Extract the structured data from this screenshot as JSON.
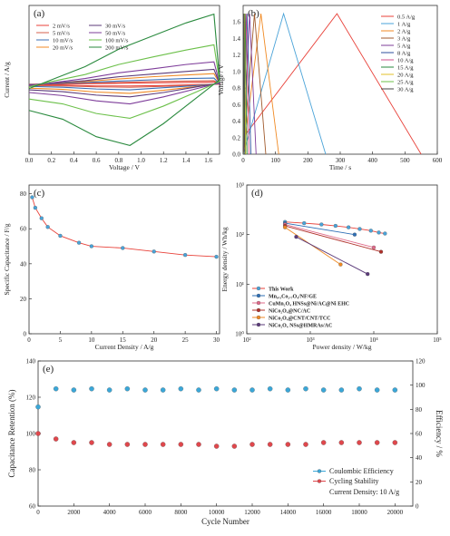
{
  "chart_data": [
    {
      "type": "line",
      "label": "(a)",
      "xlabel": "Voltage / V",
      "ylabel": "Current / A/g",
      "xlim": [
        0,
        1.7
      ],
      "ylim": [
        -16,
        18
      ],
      "xticks": [
        {
          "value": 0,
          "label": "0.0"
        },
        {
          "value": 0.2,
          "label": "0.2"
        },
        {
          "value": 0.4,
          "label": "0.4"
        },
        {
          "value": 0.6,
          "label": "0.6"
        },
        {
          "value": 0.8,
          "label": "0.8"
        },
        {
          "value": 1,
          "label": "1.0"
        },
        {
          "value": 1.2,
          "label": "1.2"
        },
        {
          "value": 1.4,
          "label": "1.4"
        },
        {
          "value": 1.6,
          "label": "1.6"
        }
      ],
      "legend": "upper left",
      "legend_columns": 2,
      "series": [
        {
          "name": "2 mV/s",
          "color": "#e8423a",
          "x": [
            0,
            0.2,
            0.5,
            0.8,
            1.1,
            1.4,
            1.65,
            1.7,
            1.5,
            1.2,
            0.9,
            0.6,
            0.3,
            0
          ],
          "values": [
            0,
            0,
            0.1,
            0.2,
            0.3,
            0.4,
            0.5,
            0,
            -0.1,
            -0.3,
            -0.4,
            -0.4,
            -0.2,
            -0.2
          ]
        },
        {
          "name": "5 mV/s",
          "color": "#d6604d",
          "x": [
            0,
            0.2,
            0.5,
            0.8,
            1.1,
            1.4,
            1.65,
            1.7,
            1.5,
            1.2,
            0.9,
            0.6,
            0.3,
            0
          ],
          "values": [
            -0.1,
            0.1,
            0.2,
            0.4,
            0.6,
            0.7,
            0.8,
            0.1,
            -0.2,
            -0.5,
            -0.7,
            -0.6,
            -0.4,
            -0.3
          ]
        },
        {
          "name": "10 mV/s",
          "color": "#3b6fb6",
          "x": [
            0,
            0.2,
            0.5,
            0.8,
            1.1,
            1.4,
            1.65,
            1.7,
            1.5,
            1.2,
            0.9,
            0.6,
            0.3,
            0
          ],
          "values": [
            -0.1,
            0.1,
            0.4,
            0.7,
            1,
            1.3,
            1.4,
            0.1,
            -0.3,
            -0.8,
            -1.3,
            -1.1,
            -0.7,
            -0.5
          ]
        },
        {
          "name": "20 mV/s",
          "color": "#f08a24",
          "x": [
            0,
            0.2,
            0.5,
            0.8,
            1.1,
            1.4,
            1.65,
            1.7,
            1.5,
            1.2,
            0.9,
            0.6,
            0.3,
            0
          ],
          "values": [
            -0.2,
            0.2,
            0.6,
            1.2,
            1.7,
            2.1,
            2.4,
            0.2,
            -0.5,
            -1.4,
            -2.1,
            -1.8,
            -1.2,
            -0.9
          ]
        },
        {
          "name": "30 mV/s",
          "color": "#5b3a7a",
          "x": [
            0,
            0.2,
            0.5,
            0.8,
            1.1,
            1.4,
            1.65,
            1.7,
            1.5,
            1.2,
            0.9,
            0.6,
            0.3,
            0
          ],
          "values": [
            -0.2,
            0.2,
            0.8,
            1.7,
            2.3,
            2.9,
            3.4,
            0.2,
            -0.6,
            -1.9,
            -2.9,
            -2.5,
            -1.7,
            -1.3
          ]
        },
        {
          "name": "50 mV/s",
          "color": "#7e3d9a",
          "x": [
            0,
            0.2,
            0.5,
            0.8,
            1.1,
            1.4,
            1.65,
            1.7,
            1.5,
            1.2,
            0.9,
            0.6,
            0.3,
            0
          ],
          "values": [
            -0.3,
            0.3,
            1.3,
            2.6,
            3.5,
            4.5,
            5.1,
            0.3,
            -1,
            -2.9,
            -4.5,
            -3.8,
            -2.6,
            -1.9
          ]
        },
        {
          "name": "100 mV/s",
          "color": "#6cc04a",
          "x": [
            0,
            0.2,
            0.5,
            0.8,
            1.1,
            1.4,
            1.65,
            1.7,
            1.5,
            1.2,
            0.9,
            0.6,
            0.3,
            0
          ],
          "values": [
            -0.6,
            0.6,
            2.2,
            4.5,
            6.2,
            7.8,
            9,
            0.6,
            -1.7,
            -5,
            -7.8,
            -6.7,
            -4.5,
            -3.4
          ]
        },
        {
          "name": "200 mV/s",
          "color": "#2a8a3e",
          "x": [
            0,
            0.2,
            0.5,
            0.8,
            1.1,
            1.4,
            1.65,
            1.7,
            1.5,
            1.2,
            0.9,
            0.6,
            0.3,
            0
          ],
          "values": [
            -1,
            1,
            4,
            8,
            11,
            14,
            16,
            1,
            -3,
            -9,
            -14,
            -12,
            -8,
            -6
          ]
        }
      ]
    },
    {
      "type": "line",
      "label": "(b)",
      "xlabel": "Time / s",
      "ylabel": "Voltage / V",
      "xlim": [
        0,
        600
      ],
      "ylim": [
        0,
        1.8
      ],
      "xticks": [
        0,
        100,
        200,
        300,
        400,
        500,
        600
      ],
      "yticks": [
        {
          "value": 0,
          "label": "0.0"
        },
        {
          "value": 0.2,
          "label": "0.2"
        },
        {
          "value": 0.4,
          "label": "0.4"
        },
        {
          "value": 0.6,
          "label": "0.6"
        },
        {
          "value": 0.8,
          "label": "0.8"
        },
        {
          "value": 1,
          "label": "1.0"
        },
        {
          "value": 1.2,
          "label": "1.2"
        },
        {
          "value": 1.4,
          "label": "1.4"
        },
        {
          "value": 1.6,
          "label": "1.6"
        }
      ],
      "legend": "upper right",
      "legend_columns": 1,
      "series": [
        {
          "name": "0.5 A/g",
          "color": "#e8423a",
          "x": [
            0,
            290,
            550
          ],
          "values": [
            0.2,
            1.7,
            0
          ]
        },
        {
          "name": "1 A/g",
          "color": "#4aa3d8",
          "x": [
            0,
            125,
            255
          ],
          "values": [
            0,
            1.7,
            0
          ]
        },
        {
          "name": "2 A/g",
          "color": "#f08a24",
          "x": [
            0,
            55,
            110
          ],
          "values": [
            0,
            1.7,
            0
          ]
        },
        {
          "name": "3 A/g",
          "color": "#a05a2c",
          "x": [
            0,
            35,
            70
          ],
          "values": [
            0,
            1.7,
            0
          ]
        },
        {
          "name": "5 A/g",
          "color": "#7e3d9a",
          "x": [
            0,
            20,
            40
          ],
          "values": [
            0,
            1.7,
            0
          ]
        },
        {
          "name": "8 A/g",
          "color": "#2e4f9e",
          "x": [
            0,
            12,
            24
          ],
          "values": [
            0,
            1.7,
            0
          ]
        },
        {
          "name": "10 A/g",
          "color": "#d14f8c",
          "x": [
            0,
            9,
            18
          ],
          "values": [
            0,
            1.7,
            0
          ]
        },
        {
          "name": "15 A/g",
          "color": "#2a8a3e",
          "x": [
            0,
            6,
            12
          ],
          "values": [
            0,
            1.7,
            0
          ]
        },
        {
          "name": "20 A/g",
          "color": "#e3c02a",
          "x": [
            0,
            4,
            8
          ],
          "values": [
            0,
            1.7,
            0
          ]
        },
        {
          "name": "25 A/g",
          "color": "#6cc04a",
          "x": [
            0,
            3,
            6
          ],
          "values": [
            0,
            1.7,
            0
          ]
        },
        {
          "name": "30 A/g",
          "color": "#444444",
          "x": [
            0,
            2.5,
            5
          ],
          "values": [
            0,
            1.7,
            0
          ]
        }
      ]
    },
    {
      "type": "line",
      "label": "(c)",
      "xlabel": "Current Density / A/g",
      "ylabel": "Specific Capacitance / F/g",
      "xlim": [
        0,
        30.5
      ],
      "ylim": [
        0,
        85
      ],
      "xticks": [
        0,
        5,
        10,
        15,
        20,
        25,
        30
      ],
      "yticks": [
        0,
        20,
        40,
        60,
        80
      ],
      "series": [
        {
          "name": "Specific Capacitance",
          "color": "#e8423a",
          "marker_color": "#4aa3d8",
          "marker": "circle",
          "x": [
            0.5,
            1,
            2,
            3,
            5,
            8,
            10,
            15,
            20,
            25,
            30
          ],
          "values": [
            78,
            72,
            66,
            61,
            56,
            52,
            50,
            49,
            47,
            45,
            44
          ]
        }
      ]
    },
    {
      "type": "line",
      "label": "(d)",
      "xlabel": "Power density / W/kg",
      "ylabel": "Energy density / Wh/kg",
      "xscale": "log",
      "yscale": "log",
      "xlim": [
        100,
        100000
      ],
      "ylim": [
        1,
        1000
      ],
      "xticks": [
        {
          "value": 100,
          "label": "10²"
        },
        {
          "value": 1000,
          "label": "10³"
        },
        {
          "value": 10000,
          "label": "10⁴"
        },
        {
          "value": 100000,
          "label": "10⁵"
        }
      ],
      "yticks": [
        {
          "value": 1,
          "label": "10⁰"
        },
        {
          "value": 10,
          "label": "10¹"
        },
        {
          "value": 100,
          "label": "10²"
        },
        {
          "value": 1000,
          "label": "10³"
        }
      ],
      "legend": "lower left",
      "legend_columns": 1,
      "series": [
        {
          "name": "This Work",
          "color": "#e8423a",
          "marker_color": "#4aa3d8",
          "marker": "circle",
          "x": [
            400,
            800,
            1500,
            2500,
            4000,
            6000,
            9000,
            12000,
            15000
          ],
          "values": [
            180,
            170,
            160,
            150,
            140,
            130,
            120,
            110,
            105
          ]
        },
        {
          "name": "Mn₀.₃Co₂.₇O₄/NF/GE",
          "color": "#2e6fb6",
          "marker": "circle",
          "x": [
            400,
            5000
          ],
          "values": [
            170,
            100
          ]
        },
        {
          "name": "CuMn₂O₄ HNSs@Ni/AC@Ni EHC",
          "color": "#e06a8a",
          "marker": "circle",
          "x": [
            400,
            10000
          ],
          "values": [
            160,
            55
          ]
        },
        {
          "name": "NiCo₂O₄@NC/AC",
          "color": "#b0302a",
          "marker": "circle",
          "x": [
            400,
            13000
          ],
          "values": [
            150,
            45
          ]
        },
        {
          "name": "NiCo₂O₄@CNT/CNT/TCC",
          "color": "#f08a24",
          "marker": "circle",
          "x": [
            400,
            3000
          ],
          "values": [
            140,
            25
          ]
        },
        {
          "name": "NiCo₂O₄ NSs@HMRAs/AC",
          "color": "#5b3a7a",
          "marker": "circle",
          "x": [
            600,
            8000
          ],
          "values": [
            90,
            16
          ]
        }
      ]
    },
    {
      "type": "line",
      "label": "(e)",
      "xlabel": "Cycle Number",
      "ylabel": "Capacitance Retention (%)",
      "y2label": "Efficiency / %",
      "xlim": [
        0,
        21000
      ],
      "ylim": [
        60,
        140
      ],
      "y2lim": [
        0,
        120
      ],
      "xticks": [
        0,
        2000,
        4000,
        6000,
        8000,
        10000,
        12000,
        14000,
        16000,
        18000,
        20000
      ],
      "yticks": [
        60,
        80,
        100,
        120,
        140
      ],
      "y2ticks": [
        0,
        20,
        40,
        60,
        80,
        100,
        120
      ],
      "legend": "lower right",
      "legend_columns": 1,
      "annotation": "Current Density: 10 A/g",
      "x": [
        0,
        1000,
        2000,
        3000,
        4000,
        5000,
        6000,
        7000,
        8000,
        9000,
        10000,
        11000,
        12000,
        13000,
        14000,
        15000,
        16000,
        17000,
        18000,
        19000,
        20000
      ],
      "series": [
        {
          "name": "Coulombic Efficiency",
          "color": "#3aa7d8",
          "marker": "circle",
          "axis": "y2",
          "values": [
            82,
            97,
            96,
            97,
            96,
            97,
            96,
            96,
            97,
            96,
            97,
            96,
            96,
            97,
            96,
            97,
            96,
            96,
            97,
            96,
            96
          ]
        },
        {
          "name": "Cycling Stability",
          "color": "#e0474c",
          "marker": "circle",
          "values": [
            100,
            97,
            95,
            95,
            94,
            94,
            94,
            94,
            94,
            94,
            93,
            93,
            94,
            94,
            94,
            94,
            95,
            95,
            95,
            95,
            95
          ]
        }
      ]
    }
  ]
}
